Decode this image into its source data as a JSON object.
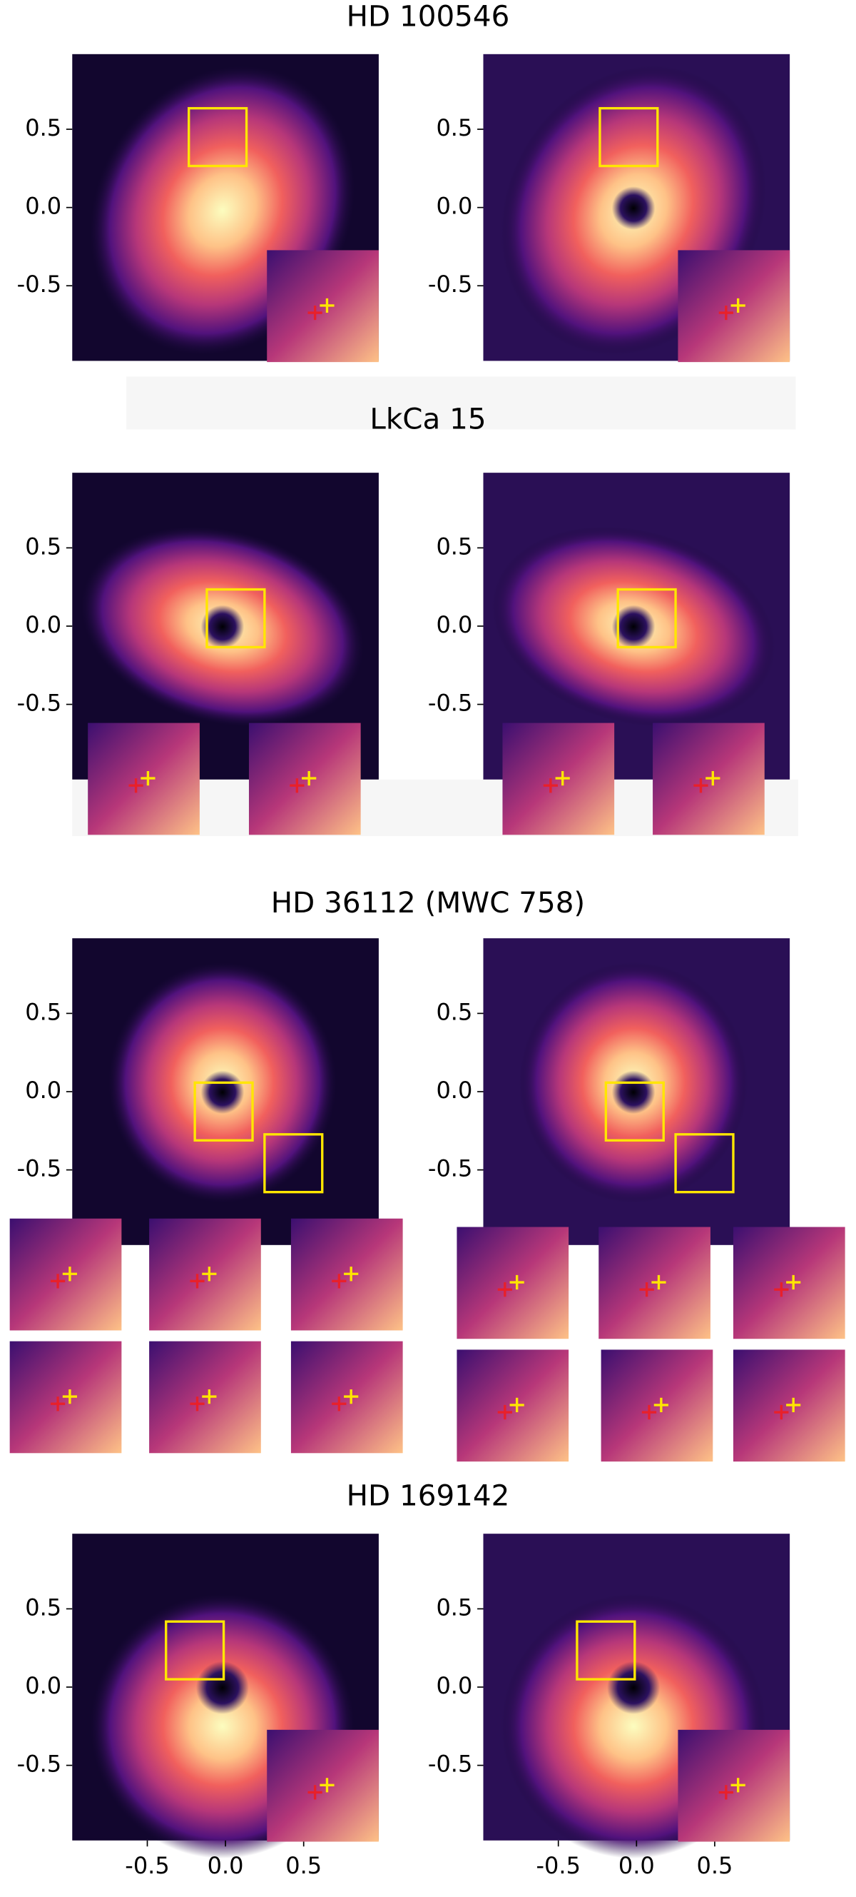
{
  "chart_data": [
    {
      "type": "image",
      "title": "HD 100546",
      "xlim": [
        -0.98,
        0.98
      ],
      "ylim": [
        -0.98,
        0.98
      ],
      "yticks": [
        0.5,
        {
          "value": 0,
          "label": "0.0"
        },
        -0.5
      ]
    },
    {
      "type": "image",
      "title": "LkCa 15",
      "xlim": [
        -0.98,
        0.98
      ],
      "ylim": [
        -0.98,
        0.98
      ],
      "yticks": [
        0.5,
        {
          "value": 0,
          "label": "0.0"
        },
        -0.5
      ]
    },
    {
      "type": "image",
      "title": "HD 36112 (MWC 758)",
      "xlim": [
        -0.98,
        0.98
      ],
      "ylim": [
        -0.98,
        0.98
      ],
      "yticks": [
        0.5,
        {
          "value": 0,
          "label": "0.0"
        },
        -0.5
      ]
    },
    {
      "type": "image",
      "title": "HD 169142",
      "xlim": [
        -0.98,
        0.98
      ],
      "ylim": [
        -0.98,
        0.98
      ],
      "yticks": [
        0.5,
        {
          "value": 0,
          "label": "0.0"
        },
        -0.5
      ],
      "xticks": [
        -0.5,
        {
          "value": 0,
          "label": "0.0"
        },
        0.5
      ]
    }
  ]
}
